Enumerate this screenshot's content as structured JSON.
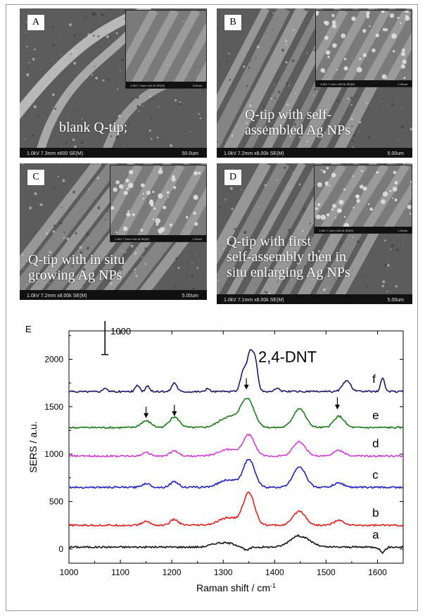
{
  "panels": [
    {
      "label": "A",
      "caption": [
        "blank Q-tip;"
      ],
      "meta": "1.0kV 7.3mm x600 SE(M)",
      "scale": "50.0um",
      "inset_meta": "1.0kV 7.3mm x10.0k SE(M)",
      "inset_scale": "3.00um"
    },
    {
      "label": "B",
      "caption": [
        "Q-tip with self-",
        "assembled Ag NPs"
      ],
      "meta": "1.0kV 7.2mm x8.00k SE(M)",
      "scale": "5.00um",
      "inset_meta": "1.0kV 7.2mm x30.0k SE(M)",
      "inset_scale": "1.00um"
    },
    {
      "label": "C",
      "caption": [
        "Q-tip with in situ",
        "growing Ag NPs"
      ],
      "meta": "1.0kV 7.2mm x8.00k SE(M)",
      "scale": "5.00um",
      "inset_meta": "1.0kV 7.2mm x30.0k SE(M)",
      "inset_scale": "1.00um"
    },
    {
      "label": "D",
      "caption": [
        "Q-tip with first",
        "self-assembly then in",
        "situ enlarging Ag NPs"
      ],
      "meta": "1.0kV 7.1mm x8.00k SE(M)",
      "scale": "5.00um",
      "inset_meta": "1.0kV 7.1mm x30.0k SE(M)",
      "inset_scale": "1.00um"
    }
  ],
  "chart_data": {
    "type": "line",
    "panel_label": "E",
    "title": "2,4-DNT",
    "xlabel": "Raman shift / cm",
    "xlabel_sup": "-1",
    "ylabel": "SERS / a.u.",
    "xlim": [
      1000,
      1650
    ],
    "ylim": [
      -150,
      2300
    ],
    "xticks": [
      1000,
      1100,
      1200,
      1300,
      1400,
      1500,
      1600
    ],
    "yticks": [
      0,
      500,
      1000,
      1500,
      2000
    ],
    "scale_bar": {
      "label": "1000",
      "value": 1000
    },
    "arrows_x": [
      1150,
      1205,
      1345,
      1522
    ],
    "series": [
      {
        "name": "a",
        "color": "#111111",
        "baseline": 20,
        "peaks": [
          [
            1290,
            40,
            14
          ],
          [
            1315,
            30,
            12
          ],
          [
            1445,
            115,
            16
          ],
          [
            1470,
            30,
            12
          ]
        ],
        "dips": [
          [
            1345,
            35,
            6
          ],
          [
            1610,
            55,
            5
          ]
        ]
      },
      {
        "name": "b",
        "color": "#e02020",
        "baseline": 250,
        "peaks": [
          [
            1150,
            40,
            8
          ],
          [
            1205,
            60,
            8
          ],
          [
            1310,
            80,
            18
          ],
          [
            1350,
            340,
            11
          ],
          [
            1448,
            150,
            12
          ],
          [
            1525,
            50,
            10
          ]
        ]
      },
      {
        "name": "c",
        "color": "#2020c0",
        "baseline": 650,
        "peaks": [
          [
            1150,
            40,
            8
          ],
          [
            1205,
            60,
            8
          ],
          [
            1310,
            80,
            18
          ],
          [
            1350,
            290,
            11
          ],
          [
            1448,
            220,
            12
          ],
          [
            1525,
            45,
            10
          ]
        ]
      },
      {
        "name": "d",
        "color": "#d040d0",
        "baseline": 980,
        "peaks": [
          [
            1150,
            35,
            8
          ],
          [
            1205,
            55,
            8
          ],
          [
            1310,
            70,
            18
          ],
          [
            1350,
            220,
            11
          ],
          [
            1448,
            150,
            12
          ],
          [
            1525,
            60,
            10
          ]
        ]
      },
      {
        "name": "e",
        "color": "#1a7a1a",
        "baseline": 1280,
        "peaks": [
          [
            1150,
            70,
            10
          ],
          [
            1205,
            110,
            10
          ],
          [
            1310,
            110,
            18
          ],
          [
            1347,
            300,
            13
          ],
          [
            1448,
            200,
            12
          ],
          [
            1525,
            120,
            10
          ]
        ]
      },
      {
        "name": "f",
        "color": "#1a1a6a",
        "baseline": 1660,
        "peaks": [
          [
            1070,
            40,
            4
          ],
          [
            1133,
            70,
            4
          ],
          [
            1153,
            55,
            4
          ],
          [
            1205,
            95,
            5
          ],
          [
            1270,
            30,
            4
          ],
          [
            1340,
            230,
            6
          ],
          [
            1352,
            360,
            5
          ],
          [
            1362,
            330,
            5
          ],
          [
            1405,
            35,
            5
          ],
          [
            1540,
            110,
            8
          ],
          [
            1610,
            140,
            4
          ]
        ]
      }
    ]
  }
}
